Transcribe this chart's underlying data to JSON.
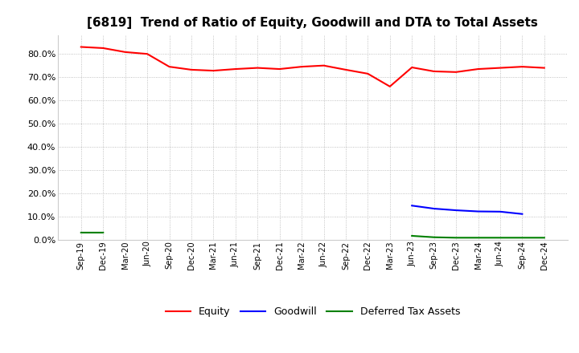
{
  "title": "[6819]  Trend of Ratio of Equity, Goodwill and DTA to Total Assets",
  "x_labels": [
    "Sep-19",
    "Dec-19",
    "Mar-20",
    "Jun-20",
    "Sep-20",
    "Dec-20",
    "Mar-21",
    "Jun-21",
    "Sep-21",
    "Dec-21",
    "Mar-22",
    "Jun-22",
    "Sep-22",
    "Dec-22",
    "Mar-23",
    "Jun-23",
    "Sep-23",
    "Dec-23",
    "Mar-24",
    "Jun-24",
    "Sep-24",
    "Dec-24"
  ],
  "equity": [
    83.0,
    82.5,
    80.8,
    80.0,
    74.5,
    73.2,
    72.8,
    73.5,
    74.0,
    73.5,
    74.5,
    75.0,
    73.2,
    71.5,
    66.0,
    74.2,
    72.5,
    72.2,
    73.5,
    74.0,
    74.5,
    74.0
  ],
  "goodwill": [
    null,
    null,
    null,
    null,
    null,
    null,
    null,
    null,
    null,
    null,
    null,
    null,
    null,
    null,
    null,
    14.8,
    13.5,
    12.8,
    12.3,
    12.2,
    11.2,
    null
  ],
  "dta": [
    3.2,
    3.2,
    null,
    null,
    null,
    null,
    null,
    null,
    null,
    null,
    null,
    null,
    null,
    null,
    null,
    1.8,
    1.2,
    1.0,
    1.0,
    1.0,
    1.0,
    1.0
  ],
  "equity_color": "#ff0000",
  "goodwill_color": "#0000ff",
  "dta_color": "#008000",
  "ylim": [
    0.0,
    88.0
  ],
  "yticks": [
    0.0,
    10.0,
    20.0,
    30.0,
    40.0,
    50.0,
    60.0,
    70.0,
    80.0
  ],
  "background_color": "#ffffff",
  "grid_color": "#b0b0b0",
  "title_fontsize": 11,
  "legend_labels": [
    "Equity",
    "Goodwill",
    "Deferred Tax Assets"
  ]
}
